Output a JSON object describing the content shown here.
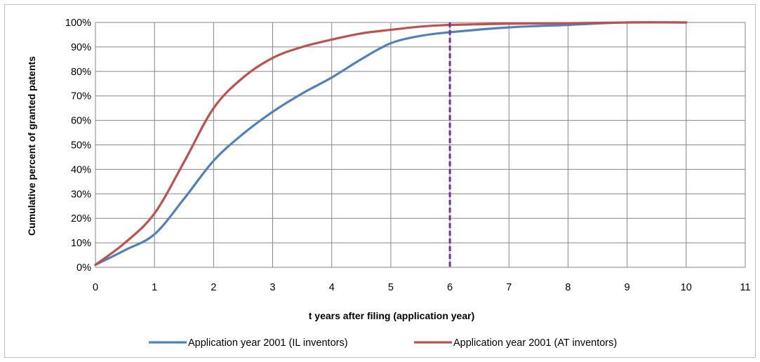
{
  "chart_data": {
    "type": "line",
    "title": "",
    "xlabel": "t years after filing  (application year)",
    "ylabel": "Cumulative percent of granted patents",
    "xlim": [
      0,
      11
    ],
    "ylim": [
      0,
      100
    ],
    "x_ticks": [
      "0",
      "1",
      "2",
      "3",
      "4",
      "5",
      "6",
      "7",
      "8",
      "9",
      "10",
      "11"
    ],
    "y_ticks": [
      "0%",
      "10%",
      "20%",
      "30%",
      "40%",
      "50%",
      "60%",
      "70%",
      "80%",
      "90%",
      "100%"
    ],
    "grid": true,
    "legend_position": "bottom",
    "vertical_marker": {
      "x": 6,
      "color": "#7030A0",
      "style": "dashed"
    },
    "series": [
      {
        "name": "Application year 2001 (IL inventors)",
        "color": "#4F81BD",
        "x": [
          0,
          0.5,
          1,
          1.5,
          2,
          2.5,
          3,
          3.5,
          4,
          4.5,
          5,
          5.5,
          6,
          7,
          8,
          9,
          10
        ],
        "values": [
          1,
          7,
          13.5,
          28,
          43.5,
          54.5,
          63.5,
          71,
          77.5,
          85,
          91.5,
          94.5,
          96,
          98,
          99,
          100,
          100
        ]
      },
      {
        "name": "Application year 2001 (AT inventors)",
        "color": "#C0504D",
        "x": [
          0,
          0.5,
          1,
          1.5,
          2,
          2.5,
          3,
          3.5,
          4,
          4.5,
          5,
          5.5,
          6,
          7,
          8,
          9,
          10
        ],
        "values": [
          1,
          10,
          22,
          43,
          65,
          77.5,
          85.5,
          90,
          93,
          95.5,
          97,
          98.3,
          99,
          99.5,
          99.7,
          100,
          100
        ]
      }
    ]
  }
}
